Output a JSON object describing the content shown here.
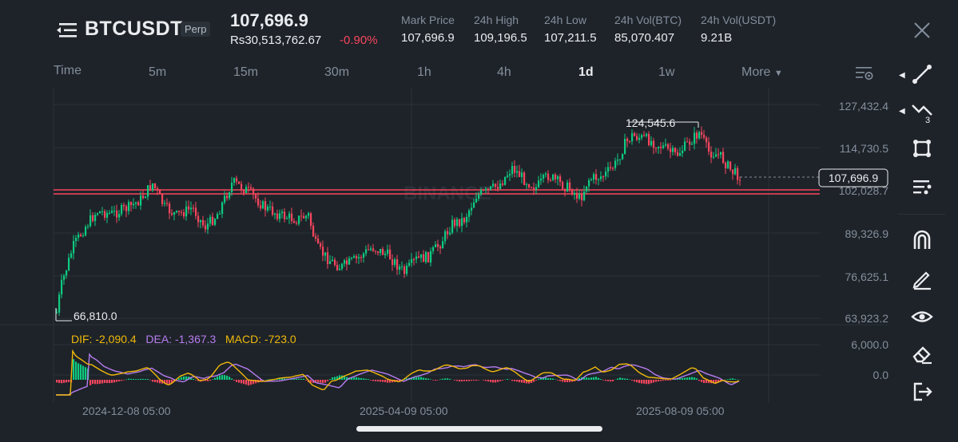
{
  "header": {
    "symbol": "BTCUSDT",
    "contract_type": "Perp",
    "last_price": "107,696.9",
    "local_price": "Rs30,513,762.67",
    "change_pct": "-0.90%",
    "stats": [
      {
        "label": "Mark Price",
        "value": "107,696.9"
      },
      {
        "label": "24h High",
        "value": "109,196.5"
      },
      {
        "label": "24h Low",
        "value": "107,211.5"
      },
      {
        "label": "24h Vol(BTC)",
        "value": "85,070.407"
      },
      {
        "label": "24h Vol(USDT)",
        "value": "9.21B"
      }
    ]
  },
  "timeframes": {
    "time_label": "Time",
    "items": [
      "5m",
      "15m",
      "30m",
      "1h",
      "4h",
      "1d",
      "1w"
    ],
    "active": "1d",
    "more_label": "More"
  },
  "chart": {
    "price_axis": [
      "127,432.4",
      "114,730.5",
      "102,028.7",
      "89,326.9",
      "76,625.1",
      "63,923.2"
    ],
    "current_price_tag": "107,696.9",
    "high_marker": "124,545.6",
    "low_marker": "66,810.0",
    "macd_axis": [
      "6,000.0",
      "0.0"
    ],
    "macd_legend": {
      "dif": "DIF: -2,090.4",
      "dea": "DEA: -1,367.3",
      "macd": "MACD: -723.0"
    },
    "date_axis": [
      "2024-12-08 05:00",
      "2025-04-09 05:00",
      "2025-08-09 05:00"
    ],
    "watermark": "BINANCE"
  },
  "colors": {
    "up": "#0ecb81",
    "down": "#f6465d",
    "dif": "#f0b90b",
    "dea": "#b67cf0",
    "grid": "#2b3139",
    "background": "#1e2329"
  },
  "toolbar_icons": [
    "line-tool-icon",
    "fib-tool-icon",
    "shape-tool-icon",
    "indicators-icon",
    "magnet-icon",
    "pencil-icon",
    "eye-icon",
    "eraser-icon",
    "exit-icon"
  ]
}
